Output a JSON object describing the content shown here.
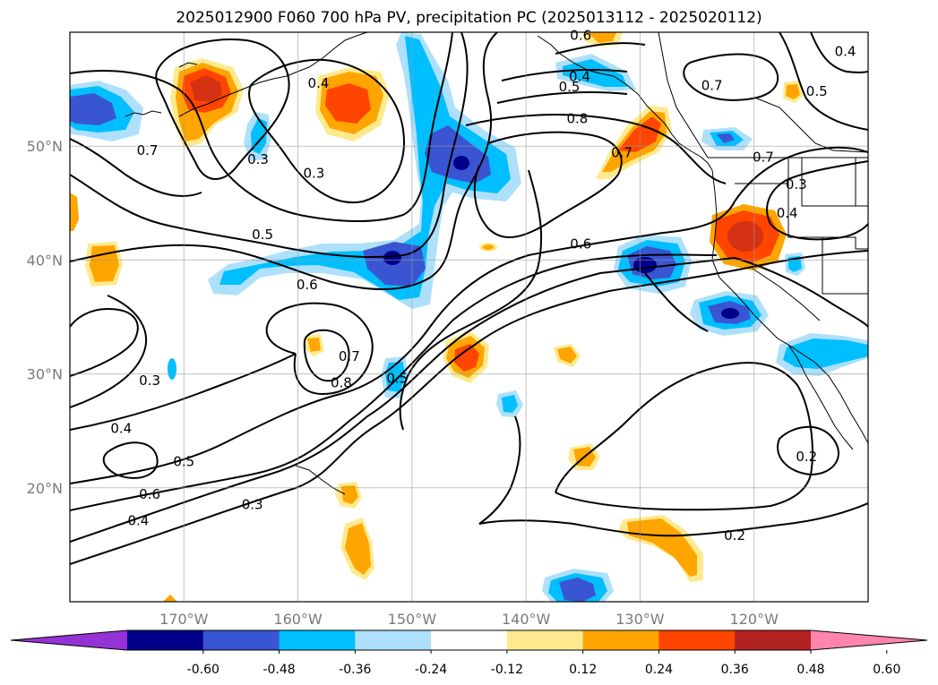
{
  "title": "2025012900 F060 700 hPa PV, precipitation PC (2025013112 - 2025020112)",
  "map": {
    "projection": "PlateCarree",
    "lon_range": [
      -180,
      -110
    ],
    "lat_range": [
      10,
      60
    ],
    "lon_ticks": [
      {
        "lon": -170,
        "label": "170°W"
      },
      {
        "lon": -160,
        "label": "160°W"
      },
      {
        "lon": -150,
        "label": "150°W"
      },
      {
        "lon": -140,
        "label": "140°W"
      },
      {
        "lon": -130,
        "label": "130°W"
      },
      {
        "lon": -120,
        "label": "120°W"
      }
    ],
    "lat_ticks": [
      {
        "lat": 20,
        "label": "20°N"
      },
      {
        "lat": 30,
        "label": "30°N"
      },
      {
        "lat": 40,
        "label": "40°N"
      },
      {
        "lat": 50,
        "label": "50°N"
      }
    ],
    "gridlines": true
  },
  "contour_labels": [
    {
      "lon": -173,
      "lat": 29.5,
      "text": "0.3"
    },
    {
      "lon": -175.5,
      "lat": 25.3,
      "text": "0.4"
    },
    {
      "lon": -170,
      "lat": 22.4,
      "text": "0.5"
    },
    {
      "lon": -173,
      "lat": 19.5,
      "text": "0.6"
    },
    {
      "lon": -174,
      "lat": 17.2,
      "text": "0.4"
    },
    {
      "lon": -164,
      "lat": 18.6,
      "text": "0.3"
    },
    {
      "lon": -173.2,
      "lat": 49.7,
      "text": "0.7"
    },
    {
      "lon": -163.5,
      "lat": 48.9,
      "text": "0.3"
    },
    {
      "lon": -158.6,
      "lat": 47.7,
      "text": "0.3"
    },
    {
      "lon": -163.1,
      "lat": 42.3,
      "text": "0.5"
    },
    {
      "lon": -159.2,
      "lat": 37.9,
      "text": "0.6"
    },
    {
      "lon": -155.5,
      "lat": 31.6,
      "text": "0.7"
    },
    {
      "lon": -156.2,
      "lat": 29.3,
      "text": "0.8"
    },
    {
      "lon": -151.3,
      "lat": 29.7,
      "text": "0.5"
    },
    {
      "lon": -158.2,
      "lat": 55.6,
      "text": "0.4"
    },
    {
      "lon": -136.2,
      "lat": 55.3,
      "text": "0.5"
    },
    {
      "lon": -135.5,
      "lat": 52.5,
      "text": "0.8"
    },
    {
      "lon": -131.6,
      "lat": 49.5,
      "text": "0.7"
    },
    {
      "lon": -135.2,
      "lat": 41.5,
      "text": "0.6"
    },
    {
      "lon": -123.7,
      "lat": 55.4,
      "text": "0.7"
    },
    {
      "lon": -119.2,
      "lat": 49.1,
      "text": "0.7"
    },
    {
      "lon": -116.3,
      "lat": 46.7,
      "text": "0.3"
    },
    {
      "lon": -117.1,
      "lat": 44.2,
      "text": "0.4"
    },
    {
      "lon": -114.5,
      "lat": 54.9,
      "text": "0.5"
    },
    {
      "lon": -112,
      "lat": 58.4,
      "text": "0.4"
    },
    {
      "lon": -135.3,
      "lat": 56.2,
      "text": "0.4"
    },
    {
      "lon": -135.2,
      "lat": 59.8,
      "text": "0.6"
    },
    {
      "lon": -121.7,
      "lat": 15.9,
      "text": "0.2"
    },
    {
      "lon": -115.4,
      "lat": 22.8,
      "text": "0.2"
    }
  ],
  "colorbar": {
    "colors": [
      "#9532d6",
      "#00008b",
      "#3a55d2",
      "#00bfff",
      "#aee0fb",
      "#ffffff",
      "#fdea8e",
      "#ffa500",
      "#ff4500",
      "#b22222",
      "#ff85ad"
    ],
    "tick_labels": [
      "-0.60",
      "-0.48",
      "-0.36",
      "-0.24",
      "-0.12",
      "0.12",
      "0.24",
      "0.36",
      "0.48",
      "0.60"
    ],
    "extend": "both"
  }
}
